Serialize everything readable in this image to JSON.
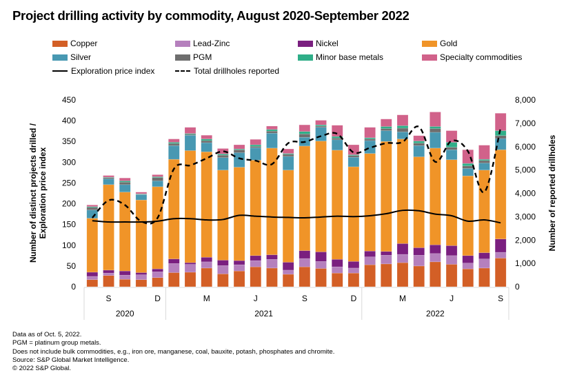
{
  "title": "Project drilling activity by commodity, August 2020-September 2022",
  "legend": [
    {
      "label": "Copper",
      "type": "bar",
      "color": "#d35f26"
    },
    {
      "label": "Lead-Zinc",
      "type": "bar",
      "color": "#b580bd"
    },
    {
      "label": "Nickel",
      "type": "bar",
      "color": "#7a1f7f"
    },
    {
      "label": "Gold",
      "type": "bar",
      "color": "#f09428"
    },
    {
      "label": "Silver",
      "type": "bar",
      "color": "#4898b2"
    },
    {
      "label": "PGM",
      "type": "bar",
      "color": "#6e6e6e"
    },
    {
      "label": "Minor base metals",
      "type": "bar",
      "color": "#2fae88"
    },
    {
      "label": "Specialty commodities",
      "type": "bar",
      "color": "#d1628a"
    },
    {
      "label": "Exploration price index",
      "type": "line"
    },
    {
      "label": "Total drillholes reported",
      "type": "dashed"
    }
  ],
  "notes": [
    "Data as of Oct. 5, 2022.",
    "PGM = platinum group metals.",
    "Does not include bulk commodities, e.g., iron ore, manganese, coal, bauxite, potash, phosphates and chromite.",
    "Source: S&P Global Market Intelligence.",
    "© 2022 S&P Global."
  ],
  "chart_data": {
    "type": "bar",
    "stacked": true,
    "title": "Project drilling activity by commodity, August 2020-September 2022",
    "ylabel": "Number of distinct projects drilled / Exploration price index",
    "y2label": "Number of reported drillholes",
    "ylim": [
      0,
      450
    ],
    "y2lim": [
      0,
      8000
    ],
    "yticks": [
      "0",
      "50",
      "100",
      "150",
      "200",
      "250",
      "300",
      "350",
      "400",
      "450"
    ],
    "y2ticks": [
      "0",
      "1,000",
      "2,000",
      "3,000",
      "4,000",
      "5,000",
      "6,000",
      "7,000",
      "8,000"
    ],
    "grid": false,
    "legend_position": "top",
    "categories": [
      "Aug 2020",
      "Sep 2020",
      "Oct 2020",
      "Nov 2020",
      "Dec 2020",
      "Jan 2021",
      "Feb 2021",
      "Mar 2021",
      "Apr 2021",
      "May 2021",
      "Jun 2021",
      "Jul 2021",
      "Aug 2021",
      "Sep 2021",
      "Oct 2021",
      "Nov 2021",
      "Dec 2021",
      "Jan 2022",
      "Feb 2022",
      "Mar 2022",
      "Apr 2022",
      "May 2022",
      "Jun 2022",
      "Jul 2022",
      "Aug 2022",
      "Sep 2022"
    ],
    "month_ticks": [
      {
        "index": 1,
        "label": "S"
      },
      {
        "index": 4,
        "label": "D"
      },
      {
        "index": 7,
        "label": "M"
      },
      {
        "index": 10,
        "label": "J"
      },
      {
        "index": 13,
        "label": "S"
      },
      {
        "index": 16,
        "label": "D"
      },
      {
        "index": 19,
        "label": "M"
      },
      {
        "index": 22,
        "label": "J"
      },
      {
        "index": 25,
        "label": "S"
      }
    ],
    "year_groups": [
      {
        "label": "2020",
        "start": 0,
        "end": 4
      },
      {
        "label": "2021",
        "start": 5,
        "end": 16
      },
      {
        "label": "2022",
        "start": 17,
        "end": 25
      }
    ],
    "series": [
      {
        "name": "Copper",
        "color": "#d35f26",
        "values": [
          17,
          27,
          18,
          17,
          22,
          34,
          35,
          45,
          31,
          38,
          48,
          45,
          30,
          48,
          44,
          33,
          33,
          53,
          55,
          58,
          50,
          60,
          54,
          43,
          45,
          69
        ]
      },
      {
        "name": "Lead-Zinc",
        "color": "#b580bd",
        "values": [
          8,
          6,
          10,
          12,
          14,
          22,
          19,
          15,
          20,
          15,
          15,
          21,
          10,
          20,
          17,
          15,
          12,
          19,
          21,
          20,
          26,
          20,
          21,
          14,
          22,
          14
        ]
      },
      {
        "name": "Nickel",
        "color": "#7a1f7f",
        "values": [
          10,
          7,
          10,
          5,
          7,
          11,
          4,
          11,
          13,
          10,
          12,
          11,
          19,
          19,
          23,
          18,
          16,
          14,
          9,
          26,
          18,
          21,
          24,
          18,
          15,
          32
        ]
      },
      {
        "name": "Gold",
        "color": "#f09428",
        "values": [
          130,
          206,
          190,
          175,
          198,
          240,
          270,
          254,
          217,
          225,
          230,
          257,
          222,
          252,
          267,
          263,
          228,
          235,
          265,
          252,
          219,
          233,
          207,
          192,
          199,
          215
        ]
      },
      {
        "name": "Silver",
        "color": "#4898b2",
        "values": [
          20,
          14,
          18,
          13,
          14,
          33,
          37,
          22,
          30,
          35,
          30,
          36,
          33,
          21,
          33,
          25,
          23,
          31,
          26,
          17,
          27,
          38,
          24,
          18,
          17,
          27
        ]
      },
      {
        "name": "PGM",
        "color": "#6e6e6e",
        "values": [
          6,
          3,
          6,
          1,
          8,
          5,
          2,
          5,
          6,
          7,
          3,
          5,
          5,
          8,
          3,
          4,
          4,
          4,
          5,
          9,
          6,
          9,
          6,
          6,
          6,
          7
        ]
      },
      {
        "name": "Minor base metals",
        "color": "#2fae88",
        "values": [
          2,
          1,
          3,
          1,
          2,
          3,
          2,
          4,
          3,
          2,
          4,
          4,
          2,
          6,
          3,
          4,
          2,
          3,
          5,
          6,
          5,
          5,
          12,
          6,
          3,
          12
        ]
      },
      {
        "name": "Specialty commodities",
        "color": "#d1628a",
        "values": [
          4,
          4,
          7,
          4,
          5,
          8,
          15,
          9,
          13,
          10,
          13,
          8,
          11,
          16,
          11,
          27,
          24,
          25,
          18,
          26,
          13,
          35,
          28,
          33,
          34,
          42
        ]
      }
    ],
    "lines": [
      {
        "name": "Exploration price index",
        "axis": "left",
        "style": "solid",
        "values": [
          159,
          156,
          156,
          156,
          158,
          164,
          164,
          161,
          162,
          172,
          170,
          168,
          167,
          166,
          168,
          170,
          169,
          171,
          176,
          184,
          183,
          175,
          171,
          158,
          161,
          154
        ]
      },
      {
        "name": "Total drillholes reported",
        "axis": "right",
        "style": "dashed",
        "values": [
          2950,
          3700,
          3500,
          2800,
          2950,
          5050,
          5200,
          5500,
          5800,
          5500,
          5400,
          5250,
          6150,
          6200,
          6450,
          6550,
          5750,
          5950,
          6150,
          6200,
          6850,
          5350,
          6250,
          5800,
          4050,
          6800
        ]
      }
    ]
  }
}
